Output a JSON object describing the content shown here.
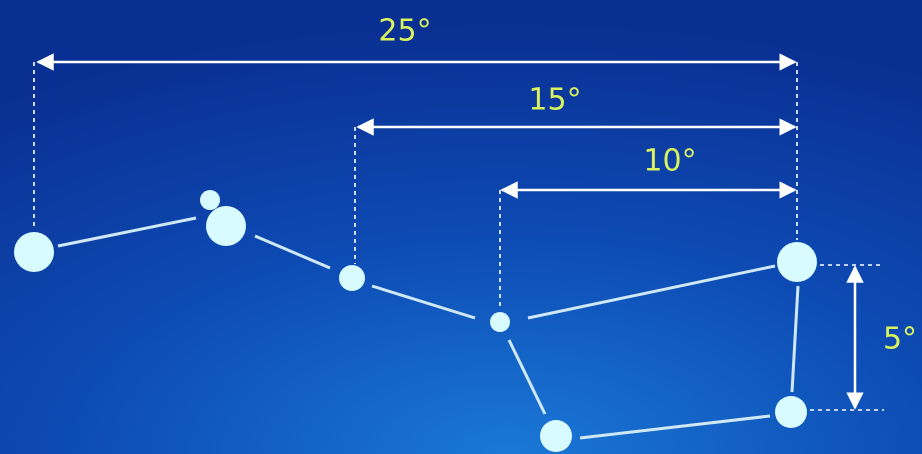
{
  "measurements": [
    {
      "label": "25°"
    },
    {
      "label": "15°"
    },
    {
      "label": "10°"
    },
    {
      "label": "5°"
    }
  ]
}
